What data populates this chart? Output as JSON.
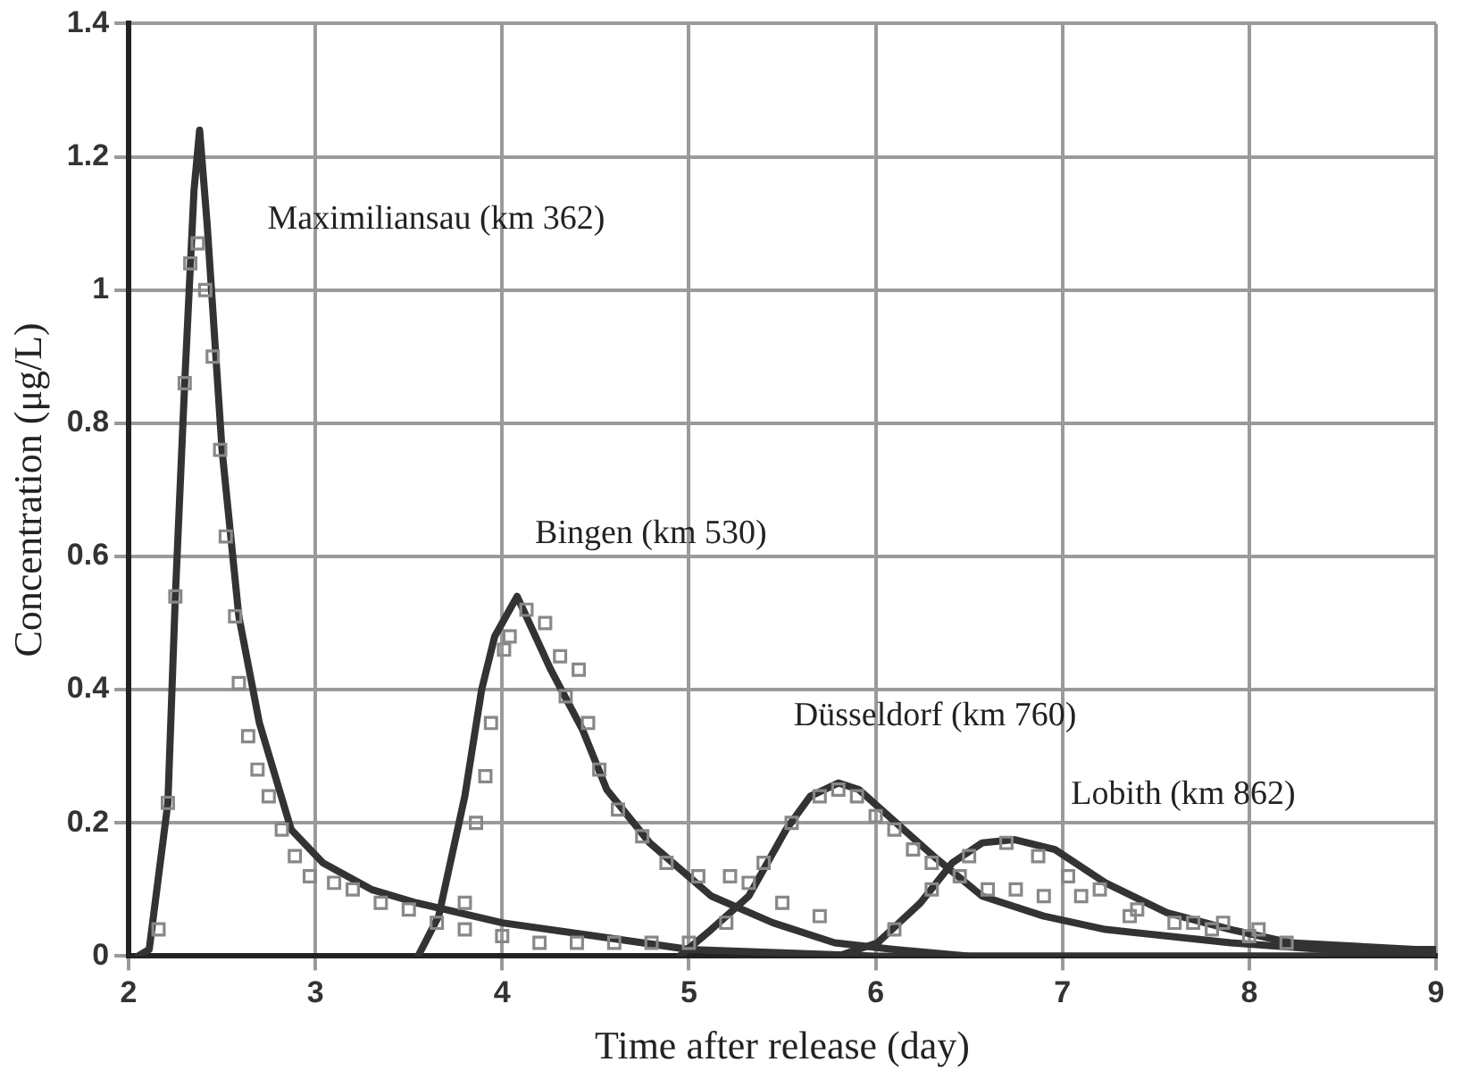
{
  "chart_data": {
    "type": "line",
    "xlabel": "Time after release (day)",
    "ylabel": "Concentration (μg/L)",
    "xlim": [
      2,
      9
    ],
    "xticks": [
      2,
      3,
      4,
      5,
      6,
      7,
      8,
      9
    ],
    "ylim": [
      0,
      1.4
    ],
    "yticks": [
      0,
      0.2,
      0.4,
      0.6,
      0.8,
      1,
      1.2,
      1.4
    ],
    "grid": true,
    "legend": false,
    "annotations": [
      "Maximiliansau (km 362)",
      "Bingen (km 530)",
      "Düsseldorf (km 760)",
      "Lobith (km 862)"
    ],
    "series": [
      {
        "marker": "none",
        "color": "#333333",
        "x": [
          2.05,
          2.11,
          2.21,
          2.25,
          2.3,
          2.35,
          2.38,
          2.42,
          2.5,
          2.59,
          2.7,
          2.87,
          3.04,
          3.3,
          3.54,
          4,
          4.5,
          5,
          6,
          7,
          9
        ],
        "values": [
          0,
          0.01,
          0.23,
          0.54,
          0.86,
          1.15,
          1.24,
          1.1,
          0.76,
          0.51,
          0.35,
          0.19,
          0.14,
          0.1,
          0.08,
          0.05,
          0.03,
          0.01,
          0,
          0,
          0
        ]
      },
      {
        "type": "scatter",
        "marker": "square",
        "color": "#888888",
        "x": [
          2.16,
          2.21,
          2.25,
          2.3,
          2.33,
          2.37,
          2.41,
          2.45,
          2.49,
          2.52,
          2.57,
          2.59,
          2.64,
          2.69,
          2.75,
          2.82,
          2.89,
          2.97,
          3.1,
          3.2,
          3.35,
          3.5,
          3.65,
          3.8,
          4,
          4.2,
          4.4,
          4.6,
          4.8,
          5
        ],
        "values": [
          0.04,
          0.23,
          0.54,
          0.86,
          1.04,
          1.07,
          1,
          0.9,
          0.76,
          0.63,
          0.51,
          0.41,
          0.33,
          0.28,
          0.24,
          0.19,
          0.15,
          0.12,
          0.11,
          0.1,
          0.08,
          0.07,
          0.05,
          0.04,
          0.03,
          0.02,
          0.02,
          0.02,
          0.02,
          0.02
        ]
      },
      {
        "marker": "none",
        "color": "#333333",
        "x": [
          3.55,
          3.66,
          3.8,
          3.89,
          3.96,
          4.08,
          4.26,
          4.43,
          4.56,
          4.79,
          5.12,
          5.45,
          5.78,
          6.1,
          6.5,
          9
        ],
        "values": [
          0,
          0.06,
          0.24,
          0.4,
          0.48,
          0.54,
          0.43,
          0.34,
          0.25,
          0.17,
          0.09,
          0.05,
          0.02,
          0.01,
          0,
          0
        ]
      },
      {
        "type": "scatter",
        "marker": "square",
        "color": "#888888",
        "x": [
          3.8,
          3.86,
          3.91,
          3.94,
          4.01,
          4.04,
          4.13,
          4.23,
          4.31,
          4.34,
          4.41,
          4.46,
          4.52,
          4.62,
          4.75,
          4.88,
          5.05,
          5.22,
          5.32,
          5.5,
          5.7
        ],
        "values": [
          0.08,
          0.2,
          0.27,
          0.35,
          0.46,
          0.48,
          0.52,
          0.5,
          0.45,
          0.39,
          0.43,
          0.35,
          0.28,
          0.22,
          0.18,
          0.14,
          0.12,
          0.12,
          0.11,
          0.08,
          0.06
        ]
      },
      {
        "marker": "none",
        "color": "#333333",
        "x": [
          4.95,
          5.12,
          5.32,
          5.52,
          5.65,
          5.8,
          5.91,
          6.11,
          6.31,
          6.57,
          6.9,
          7.23,
          7.9,
          8.4,
          9
        ],
        "values": [
          0,
          0.04,
          0.09,
          0.19,
          0.24,
          0.26,
          0.25,
          0.2,
          0.15,
          0.09,
          0.06,
          0.04,
          0.02,
          0.01,
          0.005
        ]
      },
      {
        "type": "scatter",
        "marker": "square",
        "color": "#888888",
        "x": [
          5.2,
          5.4,
          5.55,
          5.7,
          5.8,
          5.9,
          6,
          6.1,
          6.2,
          6.3,
          6.45,
          6.6,
          6.75,
          6.9,
          7.1,
          7.36,
          7.7,
          7.86,
          8.05
        ],
        "values": [
          0.05,
          0.14,
          0.2,
          0.24,
          0.25,
          0.24,
          0.21,
          0.19,
          0.16,
          0.14,
          0.12,
          0.1,
          0.1,
          0.09,
          0.09,
          0.06,
          0.05,
          0.05,
          0.04
        ]
      },
      {
        "marker": "none",
        "color": "#333333",
        "x": [
          5.8,
          6.01,
          6.24,
          6.41,
          6.57,
          6.74,
          6.96,
          7.23,
          7.56,
          7.9,
          8.22,
          8.89,
          9
        ],
        "values": [
          0,
          0.02,
          0.08,
          0.14,
          0.17,
          0.175,
          0.16,
          0.11,
          0.065,
          0.04,
          0.02,
          0.01,
          0.01
        ]
      },
      {
        "type": "scatter",
        "marker": "square",
        "color": "#888888",
        "x": [
          6.1,
          6.3,
          6.5,
          6.7,
          6.87,
          7.03,
          7.2,
          7.4,
          7.6,
          7.8,
          8,
          8.2
        ],
        "values": [
          0.04,
          0.1,
          0.15,
          0.17,
          0.15,
          0.12,
          0.1,
          0.07,
          0.05,
          0.04,
          0.03,
          0.02
        ]
      }
    ]
  }
}
